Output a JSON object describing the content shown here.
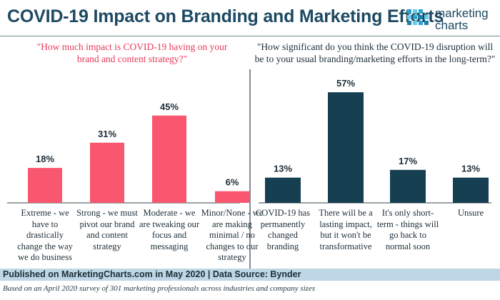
{
  "title": "COVID-19 Impact on Branding and Marketing Efforts",
  "logo": {
    "line1": "marketing",
    "line2": "charts"
  },
  "colors": {
    "left_bar": "#f9566f",
    "right_bar": "#173f52",
    "title": "#1d4a63",
    "footer_bg": "#bfd6e6"
  },
  "chart_data": [
    {
      "type": "bar",
      "title": "\"How much impact is COVID-19 having on your brand and content strategy?\"",
      "categories": [
        "Extreme - we have to drastically change the way we do business",
        "Strong - we must pivot our brand and content strategy",
        "Moderate - we are tweaking our focus and messaging",
        "Minor/None - we are making minimal / no changes to our strategy"
      ],
      "values": [
        18,
        31,
        45,
        6
      ],
      "labels": [
        "18%",
        "31%",
        "45%",
        "6%"
      ],
      "ylim": [
        0,
        60
      ],
      "unit": "%"
    },
    {
      "type": "bar",
      "title": "\"How significant do you think the COVID-19 disruption will be to your usual branding/marketing efforts in the long-term?\"",
      "categories": [
        "COVID-19 has permanently changed branding",
        "There will be a lasting impact, but it won't be transformative",
        "It's only short-term - things will go back to normal soon",
        "Unsure"
      ],
      "values": [
        13,
        57,
        17,
        13
      ],
      "labels": [
        "13%",
        "57%",
        "17%",
        "13%"
      ],
      "ylim": [
        0,
        60
      ],
      "unit": "%"
    }
  ],
  "footer": "Published on MarketingCharts.com in May 2020 | Data Source: Bynder",
  "note": "Based on an April 2020 survey of 301 marketing professionals across industries and company sizes"
}
